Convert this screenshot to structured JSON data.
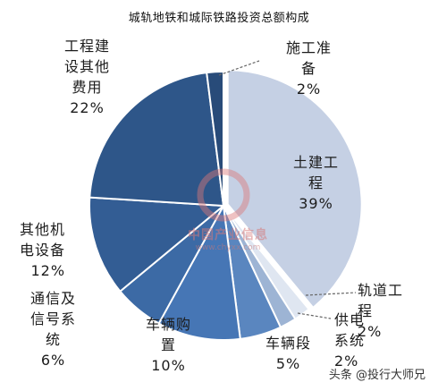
{
  "chart_data": {
    "type": "pie",
    "title": "城轨地铁和城际铁路投资总额构成",
    "slices": [
      {
        "label": "土建工\n程\n39%",
        "value": 39,
        "color": "#c5d0e4"
      },
      {
        "label": "轨道工\n程\n2%",
        "value": 2,
        "color": "#dfe6f1"
      },
      {
        "label": "供电\n系统\n2%",
        "value": 2,
        "color": "#9db4d4"
      },
      {
        "label": "车辆段\n5%",
        "value": 5,
        "color": "#5a86bf"
      },
      {
        "label": "车辆购\n置\n10%",
        "value": 10,
        "color": "#4676b5"
      },
      {
        "label": "通信及\n信号系\n统\n6%",
        "value": 6,
        "color": "#3c6aa5"
      },
      {
        "label": "其他机\n电设备\n12%",
        "value": 12,
        "color": "#335d94"
      },
      {
        "label": "工程建\n设其他\n费用\n22%",
        "value": 22,
        "color": "#2e5689"
      },
      {
        "label": "施工准\n备\n2%",
        "value": 2,
        "color": "#284b79"
      }
    ]
  },
  "watermark": {
    "brand": "中国产业信息",
    "url": "www.chyxx.com"
  },
  "attribution": "头条 @投行大师兄"
}
